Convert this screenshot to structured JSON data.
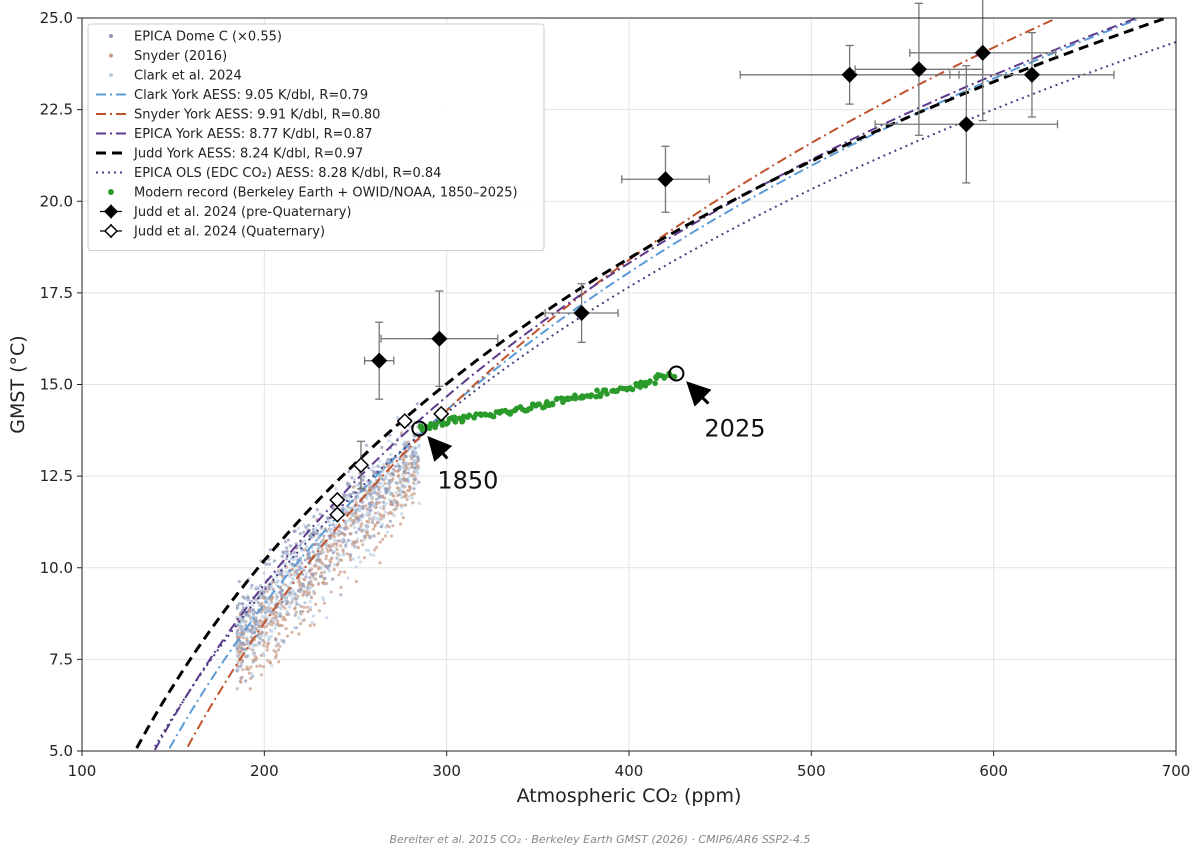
{
  "chart_data": {
    "type": "scatter",
    "xlabel": "Atmospheric CO₂ (ppm)",
    "ylabel": "GMST (°C)",
    "xlim": [
      100,
      700
    ],
    "ylim": [
      5.0,
      25.0
    ],
    "x_ticks": [
      "100",
      "200",
      "300",
      "400",
      "500",
      "600",
      "700"
    ],
    "y_ticks": [
      "5.0",
      "7.5",
      "10.0",
      "12.5",
      "15.0",
      "17.5",
      "20.0",
      "22.5",
      "25.0"
    ],
    "grid": true,
    "legend_position": "upper-left",
    "legend": [
      {
        "label": "EPICA Dome C (×0.55)",
        "style": "dot",
        "color": "#8f97b8"
      },
      {
        "label": "Snyder (2016)",
        "style": "dot",
        "color": "#c79a85"
      },
      {
        "label": "Clark et al. 2024",
        "style": "dot",
        "color": "#b9cfe4"
      },
      {
        "label": "Clark York AESS: 9.05 K/dbl, R=0.79",
        "style": "dashdot",
        "color": "#5b9bd5"
      },
      {
        "label": "Snyder York AESS: 9.91 K/dbl, R=0.80",
        "style": "dashdot",
        "color": "#c0532d"
      },
      {
        "label": "EPICA York AESS: 8.77 K/dbl, R=0.87",
        "style": "dashdot",
        "color": "#5e3a8c"
      },
      {
        "label": "Judd York AESS: 8.24 K/dbl, R=0.97",
        "style": "dashed",
        "color": "#000000"
      },
      {
        "label": "EPICA OLS (EDC CO₂) AESS: 8.28 K/dbl, R=0.84",
        "style": "dotted",
        "color": "#4a3f82"
      },
      {
        "label": "Modern record (Berkeley Earth + OWID/NOAA, 1850–2025)",
        "style": "dot",
        "color": "#2a9a2a"
      },
      {
        "label": "Judd et al. 2024 (pre-Quaternary)",
        "style": "diamond-filled",
        "color": "#000000"
      },
      {
        "label": "Judd et al. 2024 (Quaternary)",
        "style": "diamond-open",
        "color": "#000000"
      }
    ],
    "fit_lines": [
      {
        "name": "Clark York AESS: 9.05 K/dbl, R=0.79",
        "style": "dashdot",
        "color": "#5b9bd5",
        "sensitivity_per_doubling": 9.05,
        "y_at_280": 13.4
      },
      {
        "name": "Snyder York AESS: 9.91 K/dbl, R=0.80",
        "style": "dashdot",
        "color": "#c0532d",
        "sensitivity_per_doubling": 9.91,
        "y_at_280": 13.3
      },
      {
        "name": "EPICA York AESS: 8.77 K/dbl, R=0.87",
        "style": "dashdot",
        "color": "#5e3a8c",
        "sensitivity_per_doubling": 8.77,
        "y_at_280": 13.8
      },
      {
        "name": "Judd York AESS: 8.24 K/dbl, R=0.97",
        "style": "dashed",
        "color": "#000000",
        "sensitivity_per_doubling": 8.24,
        "y_at_280": 14.2
      },
      {
        "name": "EPICA OLS (EDC CO₂) AESS: 8.28 K/dbl, R=0.84",
        "style": "dotted",
        "color": "#4a3f82",
        "sensitivity_per_doubling": 8.28,
        "y_at_280": 13.4
      }
    ],
    "judd_pre_quaternary": [
      {
        "x": 263,
        "y": 15.65,
        "xerr": 8,
        "yerr": 1.05
      },
      {
        "x": 296,
        "y": 16.25,
        "xerr": 32,
        "yerr": 1.3
      },
      {
        "x": 374,
        "y": 16.95,
        "xerr": 20,
        "yerr": 0.8
      },
      {
        "x": 420,
        "y": 20.6,
        "xerr": 24,
        "yerr": 0.9
      },
      {
        "x": 521,
        "y": 23.45,
        "xerr": 60,
        "yerr": 0.8
      },
      {
        "x": 559,
        "y": 23.6,
        "xerr": 35,
        "yerr": 1.8
      },
      {
        "x": 585,
        "y": 22.1,
        "xerr": 50,
        "yerr": 1.6
      },
      {
        "x": 594,
        "y": 24.05,
        "xerr": 40,
        "yerr": 1.85
      },
      {
        "x": 621,
        "y": 23.45,
        "xerr": 45,
        "yerr": 1.15
      }
    ],
    "judd_quaternary": [
      {
        "x": 240,
        "y": 11.45,
        "xerr": 0,
        "yerr": 0
      },
      {
        "x": 240,
        "y": 11.85,
        "xerr": 0,
        "yerr": 0
      },
      {
        "x": 253,
        "y": 12.8,
        "xerr": 0,
        "yerr": 0.65
      },
      {
        "x": 277,
        "y": 14.0,
        "xerr": 0,
        "yerr": 0
      },
      {
        "x": 297,
        "y": 14.2,
        "xerr": 0,
        "yerr": 0
      }
    ],
    "modern_record": {
      "name": "Modern record (Berkeley Earth + OWID/NOAA, 1850–2025)",
      "start": {
        "x": 285,
        "y": 13.8
      },
      "end": {
        "x": 426,
        "y": 15.3
      },
      "shape": [
        {
          "x": 285,
          "y": 13.8
        },
        {
          "x": 290,
          "y": 13.85
        },
        {
          "x": 296,
          "y": 13.95
        },
        {
          "x": 300,
          "y": 14.0
        },
        {
          "x": 310,
          "y": 14.05
        },
        {
          "x": 320,
          "y": 14.15
        },
        {
          "x": 340,
          "y": 14.3
        },
        {
          "x": 360,
          "y": 14.55
        },
        {
          "x": 380,
          "y": 14.75
        },
        {
          "x": 400,
          "y": 14.85
        },
        {
          "x": 410,
          "y": 15.05
        },
        {
          "x": 420,
          "y": 15.25
        },
        {
          "x": 426,
          "y": 15.3
        }
      ]
    },
    "annotations": [
      {
        "text": "1850",
        "target": {
          "x": 285,
          "y": 13.8
        }
      },
      {
        "text": "2025",
        "target": {
          "x": 426,
          "y": 15.3
        }
      }
    ],
    "paleo_cloud": {
      "description_series": [
        "EPICA Dome C (×0.55)",
        "Snyder (2016)",
        "Clark et al. 2024"
      ],
      "x_range": [
        185,
        285
      ],
      "y_range": [
        6.7,
        15.9
      ]
    }
  },
  "source_note": "Bereiter et al. 2015 CO₂  ·  Berkeley Earth GMST (2026)  ·  CMIP6/AR6 SSP2-4.5"
}
